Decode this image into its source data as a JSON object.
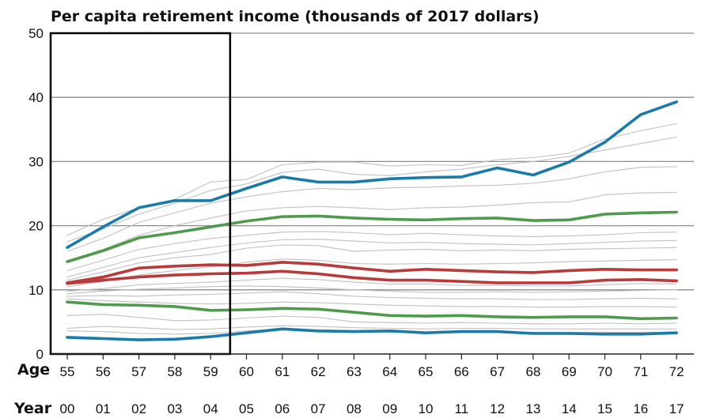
{
  "chart_data": {
    "type": "line",
    "title": "Per capita retirement income (thousands of 2017 dollars)",
    "xlabel": "",
    "ylabel": "",
    "ylim": [
      0,
      50
    ],
    "yticks": [
      0,
      10,
      20,
      30,
      40,
      50
    ],
    "grid": true,
    "row_labels": {
      "age": "Age",
      "year": "Year"
    },
    "ages": [
      "55",
      "56",
      "57",
      "58",
      "59",
      "60",
      "61",
      "62",
      "63",
      "64",
      "65",
      "66",
      "67",
      "68",
      "69",
      "70",
      "71",
      "72"
    ],
    "years": [
      "00",
      "01",
      "02",
      "03",
      "04",
      "05",
      "06",
      "07",
      "08",
      "09",
      "10",
      "11",
      "12",
      "13",
      "14",
      "15",
      "16",
      "17"
    ],
    "highlight_box": {
      "x_from": "55",
      "x_to": "59"
    },
    "colors": {
      "blue": "#1a7ba8",
      "green": "#4f9a4c",
      "red": "#b83a3a",
      "background": "#c0c0c0",
      "grid": "#8c8c8c"
    },
    "series": [
      {
        "color": "blue",
        "values": [
          16.6,
          19.8,
          22.8,
          23.9,
          23.9,
          25.8,
          27.6,
          26.8,
          26.8,
          27.3,
          27.5,
          27.6,
          29.0,
          27.9,
          29.9,
          33.0,
          37.3,
          39.3
        ]
      },
      {
        "color": "green",
        "values": [
          14.4,
          16.1,
          18.1,
          18.9,
          19.8,
          20.7,
          21.4,
          21.5,
          21.2,
          21.0,
          20.9,
          21.1,
          21.2,
          20.8,
          20.9,
          21.8,
          22.0,
          22.1
        ]
      },
      {
        "color": "red",
        "values": [
          11.1,
          12.0,
          13.4,
          13.7,
          13.9,
          13.8,
          14.3,
          14.0,
          13.4,
          12.9,
          13.2,
          13.0,
          12.8,
          12.7,
          13.0,
          13.2,
          13.1,
          13.1
        ]
      },
      {
        "color": "red",
        "values": [
          11.0,
          11.5,
          12.0,
          12.3,
          12.5,
          12.6,
          12.9,
          12.5,
          11.9,
          11.5,
          11.5,
          11.3,
          11.1,
          11.1,
          11.1,
          11.5,
          11.6,
          11.4
        ]
      },
      {
        "color": "green",
        "values": [
          8.1,
          7.7,
          7.6,
          7.4,
          6.8,
          6.9,
          7.1,
          7.0,
          6.5,
          6.0,
          5.9,
          6.0,
          5.8,
          5.7,
          5.8,
          5.8,
          5.5,
          5.6
        ]
      },
      {
        "color": "blue",
        "values": [
          2.6,
          2.4,
          2.2,
          2.3,
          2.7,
          3.3,
          3.9,
          3.6,
          3.5,
          3.6,
          3.3,
          3.5,
          3.5,
          3.2,
          3.2,
          3.1,
          3.1,
          3.3
        ]
      },
      {
        "color": "background",
        "values": [
          18.5,
          21.0,
          22.8,
          24.1,
          26.8,
          27.2,
          29.5,
          29.9,
          29.9,
          29.3,
          29.5,
          29.4,
          30.3,
          30.6,
          31.3,
          33.5,
          34.8,
          35.9
        ]
      },
      {
        "color": "background",
        "values": [
          17.5,
          19.5,
          21.8,
          23.5,
          25.5,
          26.5,
          28.3,
          28.8,
          28.0,
          27.8,
          28.4,
          28.8,
          29.5,
          30.0,
          30.8,
          31.8,
          32.8,
          33.8
        ]
      },
      {
        "color": "background",
        "values": [
          16.0,
          18.0,
          20.5,
          22.0,
          23.5,
          24.5,
          25.3,
          25.8,
          25.6,
          25.9,
          26.0,
          26.2,
          26.3,
          26.6,
          27.3,
          28.4,
          29.1,
          29.2
        ]
      },
      {
        "color": "background",
        "values": [
          14.5,
          16.3,
          18.5,
          20.0,
          21.2,
          22.3,
          22.8,
          23.0,
          22.8,
          22.5,
          22.8,
          22.9,
          23.2,
          23.6,
          23.7,
          24.8,
          25.1,
          25.2
        ]
      },
      {
        "color": "background",
        "values": [
          13.0,
          14.6,
          16.3,
          17.2,
          18.0,
          18.5,
          19.0,
          19.1,
          18.9,
          18.6,
          18.8,
          18.6,
          18.4,
          18.3,
          18.4,
          18.6,
          18.9,
          19.0
        ]
      },
      {
        "color": "background",
        "values": [
          12.0,
          13.5,
          15.0,
          15.8,
          16.6,
          17.3,
          17.8,
          17.9,
          17.6,
          17.3,
          17.4,
          17.2,
          17.1,
          17.0,
          17.2,
          17.4,
          17.6,
          17.7
        ]
      },
      {
        "color": "background",
        "values": [
          11.5,
          12.8,
          14.2,
          15.0,
          15.5,
          16.5,
          17.0,
          16.9,
          16.0,
          16.2,
          16.3,
          16.1,
          16.2,
          16.1,
          16.3,
          16.4,
          16.5,
          16.6
        ]
      },
      {
        "color": "background",
        "values": [
          10.5,
          11.3,
          12.3,
          13.0,
          13.6,
          14.3,
          14.8,
          14.6,
          14.1,
          14.0,
          14.1,
          14.0,
          14.1,
          14.2,
          14.4,
          14.5,
          14.6,
          14.7
        ]
      },
      {
        "color": "background",
        "values": [
          9.8,
          10.2,
          10.8,
          11.0,
          11.2,
          11.5,
          11.8,
          11.6,
          11.2,
          10.9,
          10.9,
          10.7,
          10.7,
          10.6,
          10.6,
          10.8,
          11.0,
          10.9
        ]
      },
      {
        "color": "background",
        "values": [
          9.4,
          9.8,
          10.1,
          10.3,
          10.5,
          10.6,
          10.5,
          10.3,
          10.0,
          9.8,
          9.6,
          9.6,
          9.7,
          9.6,
          9.7,
          9.8,
          9.9,
          10.0
        ]
      },
      {
        "color": "background",
        "values": [
          9.0,
          9.1,
          9.0,
          9.2,
          9.3,
          9.5,
          9.7,
          9.4,
          9.0,
          8.8,
          8.7,
          8.6,
          8.6,
          8.5,
          8.5,
          8.6,
          8.7,
          8.6
        ]
      },
      {
        "color": "background",
        "values": [
          8.6,
          8.3,
          8.1,
          7.9,
          7.8,
          7.9,
          8.1,
          8.0,
          7.8,
          7.6,
          7.5,
          7.4,
          7.4,
          7.3,
          7.3,
          7.4,
          7.4,
          7.3
        ]
      },
      {
        "color": "background",
        "values": [
          6.0,
          6.2,
          5.7,
          5.2,
          5.3,
          5.6,
          5.9,
          5.7,
          5.0,
          4.9,
          4.8,
          4.9,
          4.8,
          4.7,
          4.7,
          4.8,
          4.7,
          4.8
        ]
      },
      {
        "color": "background",
        "values": [
          4.0,
          4.3,
          4.1,
          3.8,
          3.9,
          4.2,
          4.4,
          4.3,
          4.1,
          4.0,
          3.9,
          4.0,
          4.0,
          3.9,
          3.9,
          3.9,
          3.9,
          3.9
        ]
      },
      {
        "color": "background",
        "values": [
          3.6,
          3.5,
          3.2,
          3.1,
          3.2,
          3.6,
          3.9,
          3.7,
          3.5,
          3.4,
          3.4,
          3.5,
          3.4,
          3.4,
          3.4,
          3.4,
          3.4,
          3.4
        ]
      }
    ]
  }
}
